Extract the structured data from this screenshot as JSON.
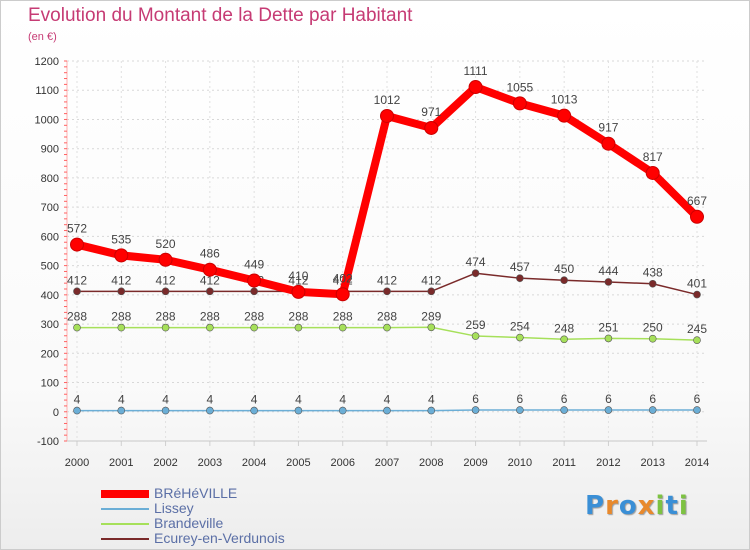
{
  "chart_data": {
    "type": "line",
    "title": "Evolution du Montant de la Dette par Habitant",
    "subtitle": "(en €)",
    "x": [
      "2000",
      "2001",
      "2002",
      "2003",
      "2004",
      "2005",
      "2006",
      "2007",
      "2008",
      "2009",
      "2010",
      "2011",
      "2012",
      "2013",
      "2014"
    ],
    "ylim": [
      -100,
      1200
    ],
    "yticks": [
      -100,
      0,
      100,
      200,
      300,
      400,
      500,
      600,
      700,
      800,
      900,
      1000,
      1100,
      1200
    ],
    "grid": true,
    "legend_position": "bottom-left",
    "series": [
      {
        "name": "BRéHéVILLE",
        "color": "#ff0000",
        "values": [
          572,
          535,
          520,
          486,
          449,
          410,
          402,
          1012,
          971,
          1111,
          1055,
          1013,
          917,
          817,
          667
        ]
      },
      {
        "name": "Lissey",
        "color": "#6baed6",
        "values": [
          4,
          4,
          4,
          4,
          4,
          4,
          4,
          4,
          4,
          6,
          6,
          6,
          6,
          6,
          6
        ]
      },
      {
        "name": "Brandeville",
        "color": "#a6e05a",
        "values": [
          288,
          288,
          288,
          288,
          288,
          288,
          288,
          288,
          289,
          259,
          254,
          248,
          251,
          250,
          245
        ]
      },
      {
        "name": "Ecurey-en-Verdunois",
        "color": "#7a2a2a",
        "values": [
          412,
          412,
          412,
          412,
          412,
          412,
          412,
          412,
          412,
          474,
          457,
          450,
          444,
          438,
          401
        ]
      }
    ]
  },
  "brand": {
    "letters": [
      "P",
      "r",
      "o",
      "x",
      "i",
      "t",
      "i"
    ],
    "colors": [
      "#3a8fd6",
      "#e8892c",
      "#3a8fd6",
      "#e8892c",
      "#7dc242",
      "#3a8fd6",
      "#7dc242"
    ]
  }
}
